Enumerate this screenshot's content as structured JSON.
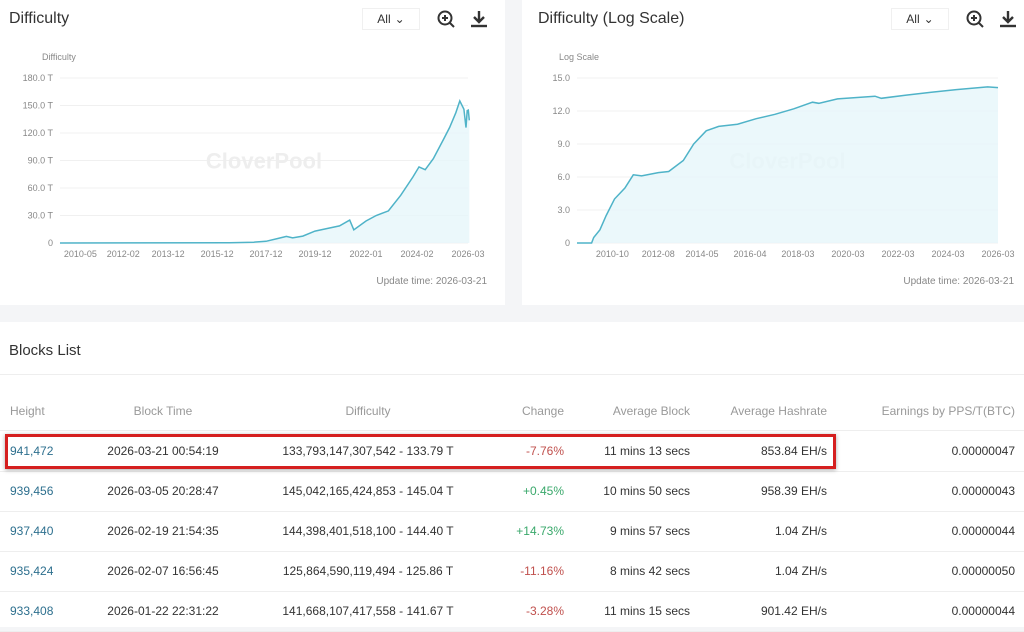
{
  "colors": {
    "line": "#4fb3c8",
    "fill": "#e6f6fa",
    "negative": "#c0504d",
    "positive": "#3aa86b",
    "link": "#2d6f8e",
    "highlight": "#d51f1f"
  },
  "watermark": "CloverPool",
  "charts": [
    {
      "title": "Difficulty",
      "range_label": "All",
      "zoom_icon": "zoom-in-icon",
      "download_icon": "download-icon",
      "update_time": "Update time: 2026-03-21"
    },
    {
      "title": "Difficulty (Log Scale)",
      "range_label": "All",
      "zoom_icon": "zoom-in-icon",
      "download_icon": "download-icon",
      "update_time": "Update time: 2026-03-21"
    }
  ],
  "chart_data": [
    {
      "type": "area",
      "ylabel": "Difficulty",
      "ylim": [
        0,
        180
      ],
      "yticks": [
        "0",
        "30.0 T",
        "60.0 T",
        "90.0 T",
        "120.0 T",
        "150.0 T",
        "180.0 T"
      ],
      "xticks": [
        "2010-05",
        "2012-02",
        "2013-12",
        "2015-12",
        "2017-12",
        "2019-12",
        "2022-01",
        "2024-02",
        "2026-03"
      ],
      "xlim": [
        "2009-07",
        "2026-03"
      ],
      "grid": true,
      "points": [
        [
          "2009-07",
          0
        ],
        [
          "2016-06",
          0.3
        ],
        [
          "2017-06",
          0.9
        ],
        [
          "2017-12",
          1.9
        ],
        [
          "2018-06",
          5
        ],
        [
          "2018-10",
          7.2
        ],
        [
          "2019-01",
          5.6
        ],
        [
          "2019-06",
          7.5
        ],
        [
          "2019-12",
          13
        ],
        [
          "2020-06",
          15.8
        ],
        [
          "2020-12",
          18.6
        ],
        [
          "2021-05",
          25
        ],
        [
          "2021-07",
          14.4
        ],
        [
          "2022-01",
          24
        ],
        [
          "2022-06",
          30
        ],
        [
          "2022-12",
          35
        ],
        [
          "2023-06",
          52
        ],
        [
          "2023-12",
          72
        ],
        [
          "2024-03",
          83
        ],
        [
          "2024-06",
          80
        ],
        [
          "2024-10",
          92
        ],
        [
          "2025-03",
          113
        ],
        [
          "2025-06",
          126
        ],
        [
          "2025-09",
          142
        ],
        [
          "2025-11",
          155
        ],
        [
          "2026-01",
          146
        ],
        [
          "2026-02",
          125.9
        ],
        [
          "2026-02-19",
          144.4
        ],
        [
          "2026-03-05",
          145
        ],
        [
          "2026-03-21",
          133.8
        ]
      ]
    },
    {
      "type": "area",
      "ylabel": "Log Scale",
      "ylim": [
        0,
        15
      ],
      "yticks": [
        "0",
        "3.0",
        "6.0",
        "9.0",
        "12.0",
        "15.0"
      ],
      "xticks": [
        "2010-10",
        "2012-08",
        "2014-05",
        "2016-04",
        "2018-03",
        "2020-03",
        "2022-03",
        "2024-03",
        "2026-03"
      ],
      "xlim": [
        "2009-05",
        "2026-03"
      ],
      "grid": true,
      "points": [
        [
          "2009-05",
          0
        ],
        [
          "2009-12",
          0
        ],
        [
          "2010-01",
          0.5
        ],
        [
          "2010-04",
          1.2
        ],
        [
          "2010-07",
          2.5
        ],
        [
          "2010-11",
          4
        ],
        [
          "2011-04",
          5
        ],
        [
          "2011-08",
          6.2
        ],
        [
          "2011-12",
          6.1
        ],
        [
          "2012-08",
          6.4
        ],
        [
          "2013-01",
          6.5
        ],
        [
          "2013-08",
          7.5
        ],
        [
          "2014-01",
          9
        ],
        [
          "2014-07",
          10.2
        ],
        [
          "2015-01",
          10.6
        ],
        [
          "2015-10",
          10.8
        ],
        [
          "2016-07",
          11.3
        ],
        [
          "2017-04",
          11.7
        ],
        [
          "2018-01",
          12.2
        ],
        [
          "2018-10",
          12.8
        ],
        [
          "2019-01",
          12.7
        ],
        [
          "2019-10",
          13.1
        ],
        [
          "2021-04",
          13.35
        ],
        [
          "2021-07",
          13.15
        ],
        [
          "2022-07",
          13.45
        ],
        [
          "2023-07",
          13.7
        ],
        [
          "2024-07",
          13.95
        ],
        [
          "2025-10",
          14.19
        ],
        [
          "2026-03",
          14.13
        ]
      ]
    }
  ],
  "blocks": {
    "title": "Blocks List",
    "columns": [
      "Height",
      "Block Time",
      "Difficulty",
      "Change",
      "Average Block",
      "Average Hashrate",
      "Earnings by PPS/T(BTC)"
    ],
    "rows": [
      {
        "height": "941,472",
        "time": "2026-03-21 00:54:19",
        "difficulty": "133,793,147,307,542 - 133.79 T",
        "change": "-7.76%",
        "avg_block": "11 mins 13 secs",
        "hashrate": "853.84 EH/s",
        "earnings": "0.00000047",
        "highlighted": true
      },
      {
        "height": "939,456",
        "time": "2026-03-05 20:28:47",
        "difficulty": "145,042,165,424,853 - 145.04 T",
        "change": "+0.45%",
        "avg_block": "10 mins 50 secs",
        "hashrate": "958.39 EH/s",
        "earnings": "0.00000043"
      },
      {
        "height": "937,440",
        "time": "2026-02-19 21:54:35",
        "difficulty": "144,398,401,518,100 - 144.40 T",
        "change": "+14.73%",
        "avg_block": "9 mins 57 secs",
        "hashrate": "1.04 ZH/s",
        "earnings": "0.00000044"
      },
      {
        "height": "935,424",
        "time": "2026-02-07 16:56:45",
        "difficulty": "125,864,590,119,494 - 125.86 T",
        "change": "-11.16%",
        "avg_block": "8 mins 42 secs",
        "hashrate": "1.04 ZH/s",
        "earnings": "0.00000050"
      },
      {
        "height": "933,408",
        "time": "2026-01-22 22:31:22",
        "difficulty": "141,668,107,417,558 - 141.67 T",
        "change": "-3.28%",
        "avg_block": "11 mins 15 secs",
        "hashrate": "901.42 EH/s",
        "earnings": "0.00000044"
      }
    ]
  }
}
